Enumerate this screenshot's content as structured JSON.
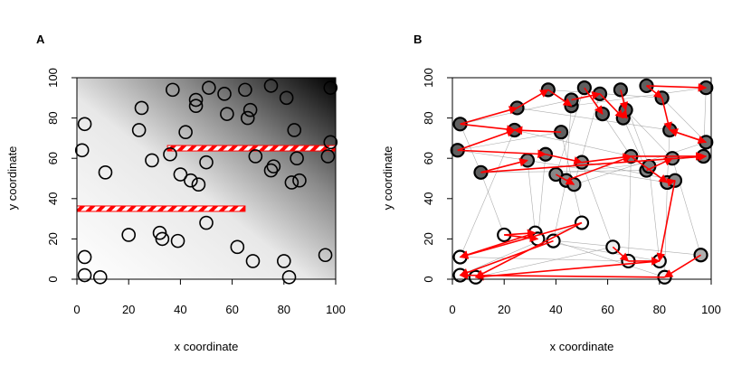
{
  "chart_data": [
    {
      "panel": "A",
      "type": "scatter",
      "xlabel": "x coordinate",
      "ylabel": "y coordinate",
      "xlim": [
        0,
        100
      ],
      "ylim": [
        0,
        100
      ],
      "xticks": [
        0,
        20,
        40,
        60,
        80,
        100
      ],
      "yticks": [
        0,
        20,
        40,
        60,
        80,
        100
      ],
      "background": "grayscale gradient, white at lower-left, black at upper-right",
      "barriers": [
        {
          "x0": 0,
          "x1": 65,
          "y": 35
        },
        {
          "x0": 35,
          "x1": 100,
          "y": 65
        }
      ],
      "barrier_color": "#ff0000",
      "points": [
        [
          3,
          77
        ],
        [
          2,
          64
        ],
        [
          11,
          53
        ],
        [
          37,
          94
        ],
        [
          25,
          85
        ],
        [
          24,
          74
        ],
        [
          46,
          86
        ],
        [
          46,
          89
        ],
        [
          51,
          95
        ],
        [
          57,
          92
        ],
        [
          58,
          82
        ],
        [
          65,
          94
        ],
        [
          66,
          80
        ],
        [
          67,
          84
        ],
        [
          75,
          96
        ],
        [
          81,
          90
        ],
        [
          84,
          74
        ],
        [
          42,
          73
        ],
        [
          36,
          62
        ],
        [
          29,
          59
        ],
        [
          40,
          52
        ],
        [
          44,
          49
        ],
        [
          47,
          47
        ],
        [
          50,
          58
        ],
        [
          69,
          61
        ],
        [
          75,
          54
        ],
        [
          76,
          56
        ],
        [
          85,
          60
        ],
        [
          83,
          48
        ],
        [
          86,
          49
        ],
        [
          97,
          61
        ],
        [
          98,
          68
        ],
        [
          98,
          95
        ],
        [
          20,
          22
        ],
        [
          32,
          23
        ],
        [
          33,
          20
        ],
        [
          39,
          19
        ],
        [
          50,
          28
        ],
        [
          62,
          16
        ],
        [
          68,
          9
        ],
        [
          80,
          9
        ],
        [
          82,
          1
        ],
        [
          96,
          12
        ],
        [
          3,
          11
        ],
        [
          3,
          2
        ],
        [
          9,
          1
        ]
      ]
    },
    {
      "panel": "B",
      "type": "scatter",
      "xlabel": "x coordinate",
      "ylabel": "y coordinate",
      "xlim": [
        0,
        100
      ],
      "ylim": [
        0,
        100
      ],
      "xticks": [
        0,
        20,
        40,
        60,
        80,
        100
      ],
      "yticks": [
        0,
        20,
        40,
        60,
        80,
        100
      ],
      "arrow_color": "#ff0000",
      "points": [
        [
          3,
          77
        ],
        [
          2,
          64
        ],
        [
          11,
          53
        ],
        [
          37,
          94
        ],
        [
          25,
          85
        ],
        [
          24,
          74
        ],
        [
          46,
          86
        ],
        [
          46,
          89
        ],
        [
          51,
          95
        ],
        [
          57,
          92
        ],
        [
          58,
          82
        ],
        [
          65,
          94
        ],
        [
          66,
          80
        ],
        [
          67,
          84
        ],
        [
          75,
          96
        ],
        [
          81,
          90
        ],
        [
          84,
          74
        ],
        [
          42,
          73
        ],
        [
          36,
          62
        ],
        [
          29,
          59
        ],
        [
          40,
          52
        ],
        [
          44,
          49
        ],
        [
          47,
          47
        ],
        [
          50,
          58
        ],
        [
          69,
          61
        ],
        [
          75,
          54
        ],
        [
          76,
          56
        ],
        [
          85,
          60
        ],
        [
          83,
          48
        ],
        [
          86,
          49
        ],
        [
          97,
          61
        ],
        [
          98,
          68
        ],
        [
          98,
          95
        ],
        [
          20,
          22
        ],
        [
          32,
          23
        ],
        [
          33,
          20
        ],
        [
          39,
          19
        ],
        [
          50,
          28
        ],
        [
          62,
          16
        ],
        [
          68,
          9
        ],
        [
          80,
          9
        ],
        [
          82,
          1
        ],
        [
          96,
          12
        ],
        [
          3,
          11
        ],
        [
          3,
          2
        ],
        [
          9,
          1
        ]
      ],
      "fill_values": [
        1,
        1,
        1,
        1,
        1,
        1,
        1,
        1,
        1,
        1,
        1,
        1,
        1,
        1,
        1,
        1,
        1,
        1,
        0.9,
        0.8,
        0.75,
        0.75,
        0.7,
        0.75,
        0.85,
        0.8,
        0.8,
        0.8,
        0.75,
        0.75,
        0.85,
        0.9,
        1,
        0,
        0,
        0,
        0,
        0,
        0.1,
        0.1,
        0.1,
        0.1,
        0.5,
        0,
        0,
        0
      ],
      "arrows": [
        [
          3,
          77,
          25,
          85
        ],
        [
          3,
          77,
          24,
          74
        ],
        [
          25,
          85,
          37,
          94
        ],
        [
          37,
          94,
          46,
          86
        ],
        [
          2,
          64,
          24,
          74
        ],
        [
          42,
          73,
          24,
          74
        ],
        [
          46,
          89,
          57,
          92
        ],
        [
          51,
          95,
          58,
          82
        ],
        [
          57,
          92,
          66,
          80
        ],
        [
          66,
          80,
          67,
          84
        ],
        [
          65,
          94,
          67,
          84
        ],
        [
          75,
          96,
          98,
          95
        ],
        [
          81,
          90,
          84,
          74
        ],
        [
          84,
          74,
          98,
          68
        ],
        [
          2,
          64,
          36,
          62
        ],
        [
          11,
          53,
          29,
          59
        ],
        [
          11,
          53,
          98,
          61
        ],
        [
          36,
          62,
          50,
          58
        ],
        [
          69,
          61,
          97,
          61
        ],
        [
          50,
          58,
          69,
          61
        ],
        [
          75,
          54,
          85,
          60
        ],
        [
          69,
          61,
          83,
          48
        ],
        [
          83,
          48,
          86,
          49
        ],
        [
          40,
          52,
          47,
          47
        ],
        [
          44,
          49,
          69,
          61
        ],
        [
          98,
          68,
          84,
          74
        ],
        [
          20,
          22,
          32,
          23
        ],
        [
          20,
          22,
          33,
          20
        ],
        [
          50,
          28,
          3,
          11
        ],
        [
          39,
          19,
          3,
          2
        ],
        [
          62,
          16,
          68,
          9
        ],
        [
          68,
          9,
          80,
          9
        ],
        [
          96,
          12,
          82,
          1
        ],
        [
          80,
          9,
          9,
          1
        ],
        [
          82,
          1,
          3,
          2
        ],
        [
          86,
          49,
          80,
          9
        ],
        [
          32,
          23,
          3,
          11
        ],
        [
          50,
          28,
          9,
          1
        ],
        [
          75,
          96,
          81,
          90
        ]
      ],
      "background_lines": [
        [
          2,
          64,
          42,
          73
        ],
        [
          3,
          77,
          46,
          89
        ],
        [
          11,
          53,
          75,
          54
        ],
        [
          24,
          74,
          69,
          61
        ],
        [
          29,
          59,
          83,
          48
        ],
        [
          36,
          62,
          86,
          49
        ],
        [
          40,
          52,
          97,
          61
        ],
        [
          47,
          47,
          98,
          68
        ],
        [
          3,
          11,
          68,
          9
        ],
        [
          9,
          1,
          62,
          16
        ],
        [
          20,
          22,
          80,
          9
        ],
        [
          33,
          20,
          96,
          12
        ],
        [
          39,
          19,
          82,
          1
        ],
        [
          3,
          2,
          50,
          28
        ],
        [
          25,
          85,
          84,
          74
        ],
        [
          37,
          94,
          81,
          90
        ],
        [
          46,
          86,
          98,
          95
        ],
        [
          11,
          53,
          20,
          22
        ],
        [
          29,
          59,
          32,
          23
        ],
        [
          44,
          49,
          39,
          19
        ],
        [
          50,
          58,
          62,
          16
        ],
        [
          69,
          61,
          68,
          9
        ],
        [
          76,
          56,
          80,
          9
        ],
        [
          85,
          60,
          96,
          12
        ],
        [
          83,
          48,
          82,
          1
        ],
        [
          24,
          74,
          3,
          11
        ],
        [
          36,
          62,
          33,
          20
        ],
        [
          42,
          73,
          50,
          28
        ],
        [
          58,
          82,
          69,
          61
        ],
        [
          66,
          80,
          75,
          54
        ],
        [
          67,
          84,
          85,
          60
        ],
        [
          65,
          94,
          76,
          56
        ],
        [
          3,
          77,
          11,
          53
        ],
        [
          2,
          64,
          29,
          59
        ],
        [
          46,
          89,
          44,
          49
        ],
        [
          57,
          92,
          47,
          47
        ],
        [
          51,
          95,
          40,
          52
        ],
        [
          98,
          95,
          97,
          61
        ],
        [
          81,
          90,
          98,
          68
        ],
        [
          84,
          74,
          83,
          48
        ]
      ]
    }
  ]
}
